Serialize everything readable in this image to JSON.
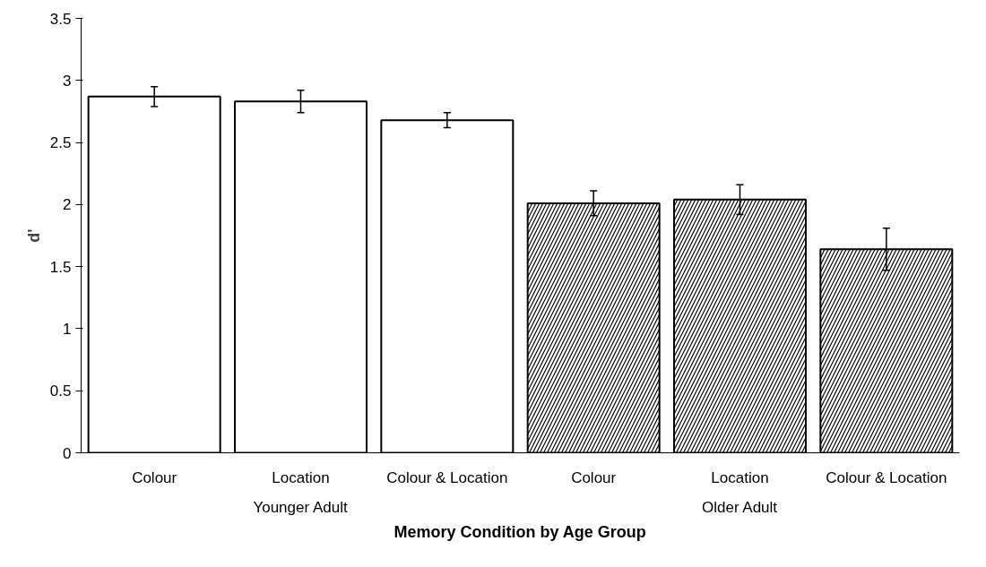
{
  "chart_data": {
    "type": "bar",
    "xlabel": "Memory Condition by Age Group",
    "ylabel": "d'",
    "categories": [
      "Colour",
      "Location",
      "Colour & Location",
      "Colour",
      "Location",
      "Colour & Location"
    ],
    "values": [
      2.87,
      2.83,
      2.68,
      2.01,
      2.04,
      1.64
    ],
    "errors": [
      0.08,
      0.09,
      0.06,
      0.1,
      0.12,
      0.17
    ],
    "colors": [
      "#ffffff",
      "#ffffff",
      "#ffffff",
      "#000000",
      "#000000",
      "#000000"
    ],
    "annotations": [
      "Younger Adult",
      "Older Adult"
    ],
    "ylim": [
      0,
      3.5
    ],
    "yticks": [
      0,
      0.5,
      1,
      1.5,
      2,
      2.5,
      3,
      3.5
    ],
    "grid": false
  }
}
